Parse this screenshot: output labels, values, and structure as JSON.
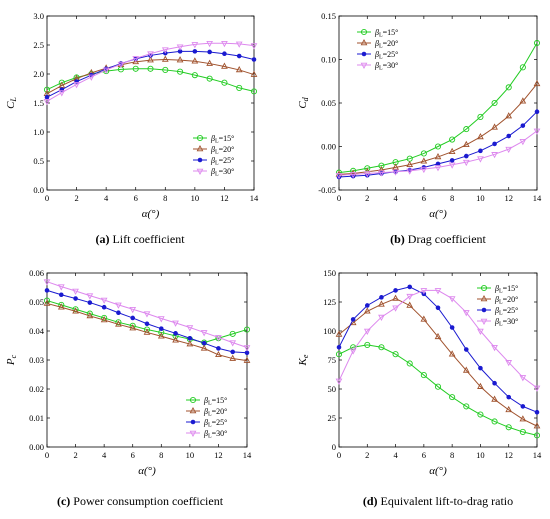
{
  "series_styles": [
    {
      "color": "#22cc22",
      "marker": "circle"
    },
    {
      "color": "#a0522d",
      "marker": "triangle-up"
    },
    {
      "color": "#1a1ad0",
      "marker": "dot"
    },
    {
      "color": "#dd88ee",
      "marker": "triangle-down"
    }
  ],
  "chart_data": [
    {
      "type": "line",
      "ylabel": "C",
      "ylabel_sub": "L",
      "xlabel": "α(°)",
      "caption_tag": "(a)",
      "caption_text": " Lift coefficient",
      "xlim": [
        0,
        14
      ],
      "ylim": [
        0.0,
        3.0
      ],
      "xticks": [
        "0",
        "2",
        "4",
        "6",
        "8",
        "10",
        "12",
        "14"
      ],
      "yticks": [
        "0.0",
        "0.5",
        "1.0",
        "1.5",
        "2.0",
        "2.5",
        "3.0"
      ],
      "legend_position": "lower-right",
      "x": [
        0,
        1,
        2,
        3,
        4,
        5,
        6,
        7,
        8,
        9,
        10,
        11,
        12,
        13,
        14
      ],
      "series": [
        {
          "name": "β",
          "name_sub": "L",
          "name_tail": "=15°",
          "values": [
            1.73,
            1.85,
            1.94,
            2.0,
            2.05,
            2.08,
            2.09,
            2.09,
            2.07,
            2.04,
            1.98,
            1.92,
            1.85,
            1.76,
            1.7
          ]
        },
        {
          "name": "β",
          "name_sub": "L",
          "name_tail": "=20°",
          "values": [
            1.66,
            1.8,
            1.92,
            2.02,
            2.1,
            2.16,
            2.21,
            2.24,
            2.25,
            2.24,
            2.22,
            2.18,
            2.13,
            2.07,
            1.99
          ]
        },
        {
          "name": "β",
          "name_sub": "L",
          "name_tail": "=25°",
          "values": [
            1.6,
            1.73,
            1.87,
            1.98,
            2.09,
            2.18,
            2.26,
            2.32,
            2.36,
            2.39,
            2.39,
            2.38,
            2.35,
            2.31,
            2.25
          ]
        },
        {
          "name": "β",
          "name_sub": "L",
          "name_tail": "=30°",
          "values": [
            1.53,
            1.68,
            1.82,
            1.95,
            2.07,
            2.17,
            2.27,
            2.35,
            2.42,
            2.47,
            2.51,
            2.53,
            2.53,
            2.52,
            2.49
          ]
        }
      ]
    },
    {
      "type": "line",
      "ylabel": "C",
      "ylabel_sub": "d",
      "xlabel": "α(°)",
      "caption_tag": "(b)",
      "caption_text": " Drag coefficient",
      "xlim": [
        0,
        14
      ],
      "ylim": [
        -0.05,
        0.15
      ],
      "xticks": [
        "0",
        "2",
        "4",
        "6",
        "8",
        "10",
        "12",
        "14"
      ],
      "yticks": [
        "-0.05",
        "0.00",
        "0.05",
        "0.10",
        "0.15"
      ],
      "legend_position": "top-left",
      "x": [
        0,
        1,
        2,
        3,
        4,
        5,
        6,
        7,
        8,
        9,
        10,
        11,
        12,
        13,
        14
      ],
      "series": [
        {
          "name": "β",
          "name_sub": "L",
          "name_tail": "=15°",
          "values": [
            -0.03,
            -0.028,
            -0.025,
            -0.022,
            -0.018,
            -0.014,
            -0.008,
            0.0,
            0.008,
            0.02,
            0.034,
            0.05,
            0.068,
            0.091,
            0.119
          ]
        },
        {
          "name": "β",
          "name_sub": "L",
          "name_tail": "=20°",
          "values": [
            -0.032,
            -0.031,
            -0.029,
            -0.027,
            -0.024,
            -0.021,
            -0.017,
            -0.012,
            -0.006,
            0.002,
            0.011,
            0.022,
            0.035,
            0.052,
            0.072
          ]
        },
        {
          "name": "β",
          "name_sub": "L",
          "name_tail": "=25°",
          "values": [
            -0.035,
            -0.034,
            -0.033,
            -0.031,
            -0.029,
            -0.027,
            -0.024,
            -0.02,
            -0.016,
            -0.011,
            -0.005,
            0.003,
            0.012,
            0.024,
            0.04
          ]
        },
        {
          "name": "β",
          "name_sub": "L",
          "name_tail": "=30°",
          "values": [
            -0.033,
            -0.032,
            -0.031,
            -0.03,
            -0.029,
            -0.028,
            -0.026,
            -0.024,
            -0.021,
            -0.018,
            -0.014,
            -0.009,
            -0.003,
            0.006,
            0.018
          ]
        }
      ]
    },
    {
      "type": "line",
      "ylabel": "P",
      "ylabel_sub": "c",
      "xlabel": "α(°)",
      "caption_tag": "(c)",
      "caption_text": " Power consumption coefficient",
      "xlim": [
        0,
        14
      ],
      "ylim": [
        0.0,
        0.06
      ],
      "xticks": [
        "0",
        "2",
        "4",
        "6",
        "8",
        "10",
        "12",
        "14"
      ],
      "yticks": [
        "0.00",
        "0.01",
        "0.02",
        "0.03",
        "0.04",
        "0.05",
        "0.06"
      ],
      "legend_position": "lower-right",
      "x": [
        0,
        1,
        2,
        3,
        4,
        5,
        6,
        7,
        8,
        9,
        10,
        11,
        12,
        13,
        14
      ],
      "series": [
        {
          "name": "β",
          "name_sub": "L",
          "name_tail": "=15°",
          "values": [
            0.0505,
            0.049,
            0.0475,
            0.046,
            0.0445,
            0.043,
            0.0418,
            0.0405,
            0.0395,
            0.0383,
            0.0372,
            0.036,
            0.0375,
            0.039,
            0.0405
          ]
        },
        {
          "name": "β",
          "name_sub": "L",
          "name_tail": "=20°",
          "values": [
            0.0495,
            0.0482,
            0.0468,
            0.0452,
            0.0438,
            0.0423,
            0.041,
            0.0395,
            0.0382,
            0.0368,
            0.0355,
            0.034,
            0.0318,
            0.0305,
            0.0298
          ]
        },
        {
          "name": "β",
          "name_sub": "L",
          "name_tail": "=25°",
          "values": [
            0.054,
            0.0525,
            0.0512,
            0.0498,
            0.0482,
            0.0463,
            0.0445,
            0.0425,
            0.0408,
            0.0392,
            0.0375,
            0.0358,
            0.034,
            0.0328,
            0.0325
          ]
        },
        {
          "name": "β",
          "name_sub": "L",
          "name_tail": "=30°",
          "values": [
            0.057,
            0.0553,
            0.0538,
            0.0522,
            0.0507,
            0.049,
            0.0475,
            0.046,
            0.0443,
            0.0428,
            0.0412,
            0.0395,
            0.0378,
            0.036,
            0.0343
          ]
        }
      ]
    },
    {
      "type": "line",
      "ylabel": "K",
      "ylabel_sub": "e",
      "xlabel": "α(°)",
      "caption_tag": "(d)",
      "caption_text": " Equivalent lift-to-drag ratio",
      "xlim": [
        0,
        14
      ],
      "ylim": [
        0,
        150
      ],
      "xticks": [
        "0",
        "2",
        "4",
        "6",
        "8",
        "10",
        "12",
        "14"
      ],
      "yticks": [
        "0",
        "25",
        "50",
        "75",
        "100",
        "125",
        "150"
      ],
      "legend_position": "top-right",
      "x": [
        0,
        1,
        2,
        3,
        4,
        5,
        6,
        7,
        8,
        9,
        10,
        11,
        12,
        13,
        14
      ],
      "series": [
        {
          "name": "β",
          "name_sub": "L",
          "name_tail": "=15°",
          "values": [
            80,
            86,
            88,
            86,
            80,
            72,
            62,
            52,
            43,
            35,
            28,
            22,
            17,
            13,
            10
          ]
        },
        {
          "name": "β",
          "name_sub": "L",
          "name_tail": "=20°",
          "values": [
            97,
            107,
            117,
            123,
            128,
            122,
            110,
            95,
            80,
            66,
            52,
            41,
            32,
            24,
            18
          ]
        },
        {
          "name": "β",
          "name_sub": "L",
          "name_tail": "=25°",
          "values": [
            86,
            110,
            122,
            129,
            135,
            138,
            132,
            120,
            103,
            84,
            68,
            55,
            43,
            35,
            30
          ]
        },
        {
          "name": "β",
          "name_sub": "L",
          "name_tail": "=30°",
          "values": [
            57,
            83,
            100,
            112,
            120,
            130,
            135,
            135,
            128,
            116,
            100,
            86,
            73,
            60,
            51
          ]
        }
      ]
    }
  ]
}
